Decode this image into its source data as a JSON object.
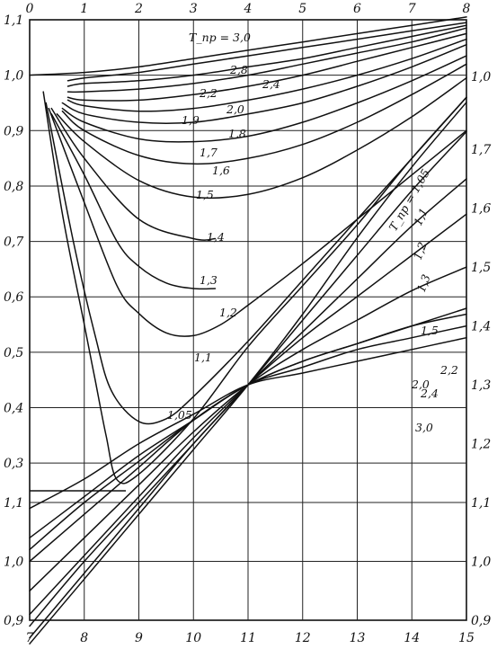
{
  "chart_data": [
    {
      "type": "line",
      "title": "",
      "x_top_ticks": [
        "0",
        "1",
        "2",
        "3",
        "4",
        "5",
        "6",
        "7",
        "8"
      ],
      "y_left_ticks": [
        "1,1",
        "1,0",
        "0,9",
        "0,8",
        "0,7",
        "0,6",
        "0,5",
        "0,4",
        "0,3"
      ],
      "xlim": [
        0,
        8
      ],
      "ylim": [
        0.25,
        1.1
      ],
      "series": [
        {
          "name": "T_пр = 3,0",
          "x": [
            0,
            1,
            2,
            3,
            4,
            5,
            6,
            7,
            8
          ],
          "y": [
            1.0,
            1.005,
            1.015,
            1.03,
            1.045,
            1.06,
            1.075,
            1.09,
            1.105
          ]
        },
        {
          "name": "2,8",
          "x": [
            0.7,
            1,
            2,
            3,
            4,
            5,
            6,
            7,
            8
          ],
          "y": [
            0.99,
            0.995,
            1.005,
            1.02,
            1.035,
            1.05,
            1.065,
            1.08,
            1.095
          ]
        },
        {
          "name": "2,4",
          "x": [
            0.7,
            1,
            2,
            3,
            4,
            5,
            6,
            7,
            8
          ],
          "y": [
            0.98,
            0.985,
            0.99,
            1.0,
            1.015,
            1.03,
            1.05,
            1.07,
            1.09
          ]
        },
        {
          "name": "2,2",
          "x": [
            0.7,
            1,
            2,
            3,
            4,
            5,
            6,
            7,
            8
          ],
          "y": [
            0.97,
            0.97,
            0.975,
            0.985,
            1.0,
            1.02,
            1.04,
            1.06,
            1.085
          ]
        },
        {
          "name": "2,0",
          "x": [
            0.7,
            1,
            2,
            3,
            4,
            5,
            6,
            7,
            8
          ],
          "y": [
            0.96,
            0.955,
            0.955,
            0.965,
            0.98,
            1.0,
            1.025,
            1.05,
            1.075
          ]
        },
        {
          "name": "1,9",
          "x": [
            0.7,
            1,
            2,
            3,
            4,
            5,
            6,
            7,
            8
          ],
          "y": [
            0.955,
            0.945,
            0.935,
            0.94,
            0.955,
            0.975,
            1.0,
            1.03,
            1.065
          ]
        },
        {
          "name": "1,8",
          "x": [
            0.6,
            1,
            2,
            3,
            4,
            5,
            6,
            7,
            8
          ],
          "y": [
            0.95,
            0.93,
            0.915,
            0.915,
            0.93,
            0.95,
            0.98,
            1.015,
            1.055
          ]
        },
        {
          "name": "1,7",
          "x": [
            0.6,
            1,
            2,
            3,
            4,
            5,
            6,
            7,
            8
          ],
          "y": [
            0.94,
            0.915,
            0.885,
            0.88,
            0.89,
            0.915,
            0.95,
            0.99,
            1.035
          ]
        },
        {
          "name": "1,6",
          "x": [
            0.6,
            1,
            2,
            3,
            4,
            5,
            6,
            7,
            8
          ],
          "y": [
            0.935,
            0.9,
            0.855,
            0.84,
            0.85,
            0.875,
            0.915,
            0.965,
            1.02
          ]
        },
        {
          "name": "1,5",
          "x": [
            0.5,
            1,
            2,
            3,
            4,
            5,
            6,
            7,
            8
          ],
          "y": [
            0.93,
            0.88,
            0.81,
            0.78,
            0.785,
            0.815,
            0.865,
            0.925,
            0.995
          ]
        },
        {
          "name": "1,4",
          "x": [
            0.4,
            1,
            2,
            3,
            3.4
          ],
          "y": [
            0.94,
            0.85,
            0.74,
            0.705,
            0.705
          ]
        },
        {
          "name": "1,3",
          "x": [
            0.4,
            1,
            1.6,
            2,
            2.5,
            3,
            3.4
          ],
          "y": [
            0.93,
            0.82,
            0.7,
            0.655,
            0.625,
            0.615,
            0.615
          ]
        },
        {
          "name": "1,2",
          "x": [
            0.35,
            1,
            1.6,
            2,
            2.5,
            3,
            3.5,
            4,
            5,
            6,
            7,
            8
          ],
          "y": [
            0.94,
            0.77,
            0.62,
            0.57,
            0.535,
            0.53,
            0.55,
            0.585,
            0.66,
            0.74,
            0.82,
            0.9
          ]
        },
        {
          "name": "1,1",
          "x": [
            0.3,
            0.8,
            1.2,
            1.5,
            2,
            2.5,
            3,
            4,
            5,
            6,
            7,
            8
          ],
          "y": [
            0.95,
            0.7,
            0.53,
            0.43,
            0.375,
            0.38,
            0.42,
            0.52,
            0.63,
            0.74,
            0.85,
            0.96
          ]
        },
        {
          "name": "1,05",
          "x": [
            0.25,
            0.6,
            1,
            1.2,
            1.4,
            1.6,
            2,
            3,
            4,
            5,
            6,
            7,
            8
          ],
          "y": [
            0.97,
            0.75,
            0.55,
            0.45,
            0.35,
            0.27,
            0.28,
            0.38,
            0.51,
            0.62,
            0.73,
            0.85,
            0.96
          ]
        }
      ]
    },
    {
      "type": "line",
      "title": "",
      "x_bottom_ticks": [
        "7",
        "8",
        "9",
        "10",
        "11",
        "12",
        "13",
        "14",
        "15"
      ],
      "y_right_ticks_lower": [
        "0,9",
        "1,0",
        "1,1",
        "1,2",
        "1,3",
        "1,4",
        "1,5",
        "1,6",
        "1,7"
      ],
      "y_right_ticks_upper": [
        "1,0"
      ],
      "y_left_ticks_lower": [
        "1,1",
        "1,0",
        "0,9"
      ],
      "xlim": [
        7,
        15
      ],
      "ylim": [
        0.9,
        1.74
      ],
      "series": [
        {
          "name": "T_пр = 1,05",
          "x": [
            7,
            8,
            9,
            10,
            11,
            12,
            13,
            14,
            15
          ],
          "y": [
            0.86,
            0.97,
            1.08,
            1.19,
            1.3,
            1.42,
            1.55,
            1.67,
            1.78
          ]
        },
        {
          "name": "1,1",
          "x": [
            7,
            8,
            9,
            10,
            11,
            12,
            13,
            14,
            15
          ],
          "y": [
            0.87,
            0.98,
            1.09,
            1.2,
            1.3,
            1.41,
            1.52,
            1.63,
            1.73
          ]
        },
        {
          "name": "1,2",
          "x": [
            7,
            8,
            9,
            10,
            11,
            12,
            13,
            14,
            15
          ],
          "y": [
            0.89,
            1.0,
            1.1,
            1.2,
            1.3,
            1.39,
            1.48,
            1.57,
            1.65
          ]
        },
        {
          "name": "1,3",
          "x": [
            7,
            8,
            9,
            10,
            11,
            12,
            13,
            14,
            15
          ],
          "y": [
            0.91,
            1.01,
            1.11,
            1.21,
            1.3,
            1.38,
            1.45,
            1.52,
            1.59
          ]
        },
        {
          "name": "1,5",
          "x": [
            7,
            8,
            9,
            10,
            11,
            12,
            13,
            14,
            15
          ],
          "y": [
            0.95,
            1.04,
            1.13,
            1.22,
            1.3,
            1.36,
            1.41,
            1.46,
            1.5
          ]
        },
        {
          "name": "2,0",
          "x": [
            7,
            8,
            9,
            10,
            11,
            12,
            13,
            14,
            15
          ],
          "y": [
            1.0,
            1.08,
            1.16,
            1.24,
            1.3,
            1.34,
            1.37,
            1.4,
            1.43
          ]
        },
        {
          "name": "2,2",
          "x": [
            7,
            8,
            9,
            10,
            11,
            12,
            13,
            14,
            15
          ],
          "y": [
            1.02,
            1.1,
            1.17,
            1.24,
            1.3,
            1.34,
            1.37,
            1.4,
            1.42
          ]
        },
        {
          "name": "2,4",
          "x": [
            7,
            8,
            9,
            10,
            11,
            12,
            13,
            14,
            15
          ],
          "y": [
            1.04,
            1.11,
            1.18,
            1.24,
            1.3,
            1.33,
            1.36,
            1.38,
            1.4
          ]
        },
        {
          "name": "3,0",
          "x": [
            7,
            8,
            9,
            10,
            11,
            12,
            13,
            14,
            15
          ],
          "y": [
            1.09,
            1.14,
            1.2,
            1.25,
            1.3,
            1.32,
            1.34,
            1.36,
            1.38
          ]
        }
      ]
    }
  ],
  "labels_upper": [
    "T_пр = 3,0",
    "2,8",
    "2,4",
    "2,2",
    "2,0",
    "1,9",
    "1,8",
    "1,7",
    "1,6",
    "1,5",
    "1,4",
    "1,3",
    "1,2",
    "1,1",
    "1,05"
  ],
  "labels_lower": [
    "T_пр = 1,05",
    "1,1",
    "1,2",
    "1,3",
    "1,5",
    "2,0",
    "2,2",
    "2,4",
    "3,0"
  ]
}
